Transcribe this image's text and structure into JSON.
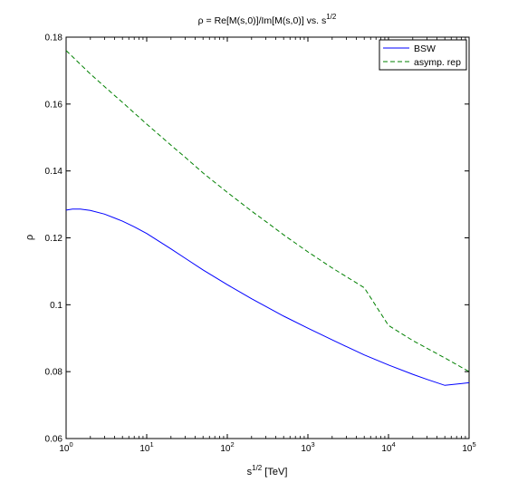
{
  "chart_data": {
    "type": "line",
    "title_main": "ρ = Re[M(s,0)]/Im[M(s,0)] vs. s",
    "title_sup": "1/2",
    "xlabel_main": "s",
    "xlabel_sup": "1/2",
    "xlabel_unit": " [TeV]",
    "ylabel": "ρ",
    "xscale": "log",
    "xlim": [
      1,
      100000
    ],
    "ylim": [
      0.06,
      0.18
    ],
    "grid": false,
    "legend_position": "top-right",
    "x_ticks": [
      {
        "base": "10",
        "exp": "0"
      },
      {
        "base": "10",
        "exp": "1"
      },
      {
        "base": "10",
        "exp": "2"
      },
      {
        "base": "10",
        "exp": "3"
      },
      {
        "base": "10",
        "exp": "4"
      },
      {
        "base": "10",
        "exp": "5"
      }
    ],
    "y_ticks": [
      "0.06",
      "0.08",
      "0.1",
      "0.12",
      "0.14",
      "0.16",
      "0.18"
    ],
    "series": [
      {
        "name": "BSW",
        "color": "#0000ff",
        "dash": "solid",
        "x": [
          1,
          1.2,
          1.5,
          2,
          3,
          5,
          7,
          10,
          20,
          30,
          50,
          100,
          200,
          300,
          500,
          1000,
          2000,
          3000,
          5000,
          10000,
          20000,
          30000,
          50000,
          100000
        ],
        "y": [
          0.1283,
          0.1286,
          0.1286,
          0.1282,
          0.1271,
          0.125,
          0.1233,
          0.1213,
          0.1167,
          0.1139,
          0.1104,
          0.106,
          0.1018,
          0.0995,
          0.0966,
          0.093,
          0.0895,
          0.0875,
          0.085,
          0.082,
          0.0792,
          0.0777,
          0.0759,
          0.0767
        ]
      },
      {
        "name": "asymp. rep",
        "color": "#008000",
        "dash": "dashed",
        "x": [
          1,
          2,
          3,
          5,
          10,
          20,
          30,
          50,
          100,
          200,
          300,
          500,
          1000,
          2000,
          5000,
          10000,
          20000,
          50000,
          100000
        ],
        "y": [
          0.176,
          0.169,
          0.1652,
          0.1605,
          0.154,
          0.1477,
          0.1441,
          0.1394,
          0.1336,
          0.128,
          0.1249,
          0.1209,
          0.1158,
          0.111,
          0.1051,
          0.0938,
          0.0893,
          0.0841,
          0.08
        ]
      }
    ]
  }
}
